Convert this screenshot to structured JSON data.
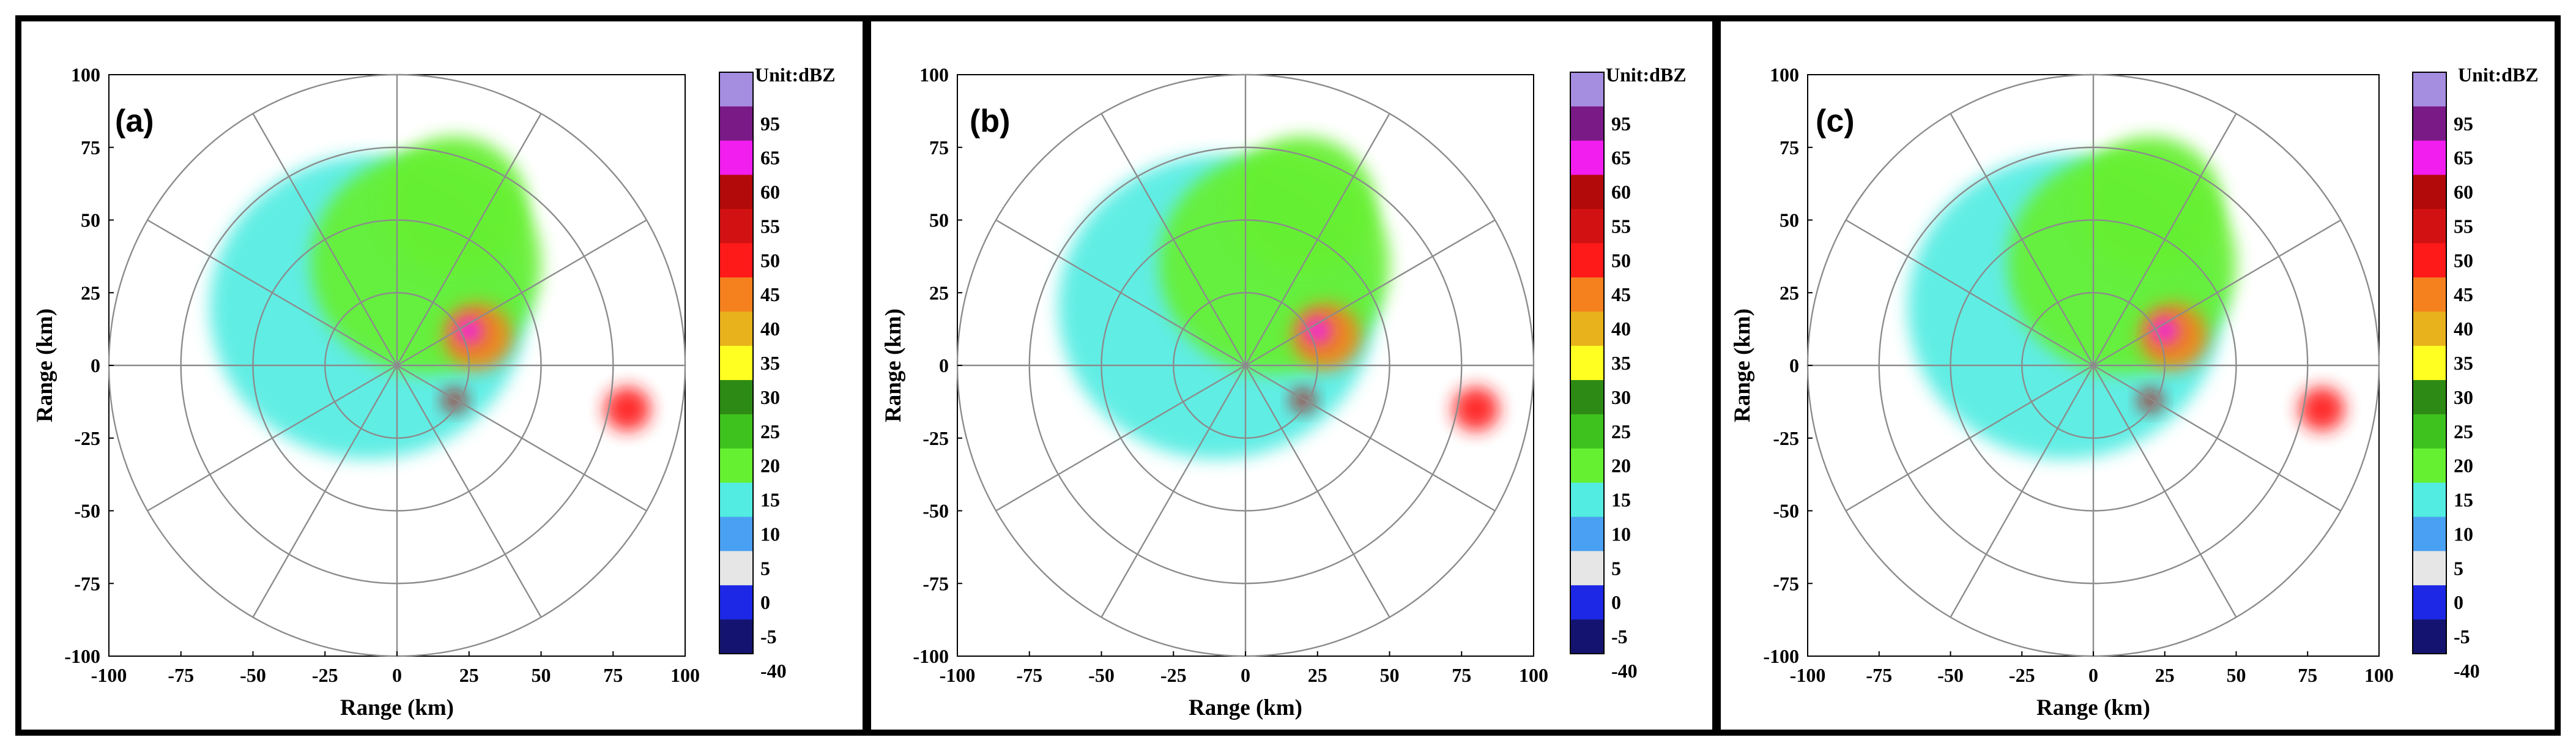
{
  "chart_data": [
    {
      "type": "heatmap",
      "panel_label": "(a)",
      "xlabel": "Range (km)",
      "ylabel": "Range (km)",
      "xlim": [
        -100,
        100
      ],
      "ylim": [
        -100,
        100
      ],
      "xticks": [
        "-100",
        "-75",
        "-50",
        "-25",
        "0",
        "25",
        "50",
        "75",
        "100"
      ],
      "yticks": [
        "100",
        "75",
        "50",
        "25",
        "0",
        "-25",
        "-50",
        "-75",
        "-100"
      ],
      "range_rings_km": [
        25,
        50,
        75,
        100
      ],
      "radial_spokes_deg": [
        0,
        30,
        60,
        90,
        120,
        150,
        180,
        210,
        240,
        270,
        300,
        330
      ],
      "colorbar_title": "Unit:dBZ",
      "colorbar_labels": [
        "95",
        "65",
        "60",
        "55",
        "50",
        "45",
        "40",
        "35",
        "30",
        "25",
        "20",
        "15",
        "10",
        "5",
        "0",
        "-5",
        "-40"
      ],
      "reflectivity_regions": [
        {
          "x": -10,
          "y": 20,
          "radius": 55,
          "dbz": 12
        },
        {
          "x": 10,
          "y": 35,
          "radius": 40,
          "dbz": 18
        },
        {
          "x": 20,
          "y": 55,
          "radius": 25,
          "dbz": 18
        },
        {
          "x": 28,
          "y": 10,
          "radius": 12,
          "dbz": 40
        },
        {
          "x": 25,
          "y": 12,
          "radius": 5,
          "dbz": 60
        },
        {
          "x": 80,
          "y": -15,
          "radius": 8,
          "dbz": 45
        },
        {
          "x": 20,
          "y": -12,
          "radius": 4,
          "dbz": 55
        }
      ]
    },
    {
      "type": "heatmap",
      "panel_label": "(b)",
      "xlabel": "Range (km)",
      "ylabel": "Range (km)",
      "xlim": [
        -100,
        100
      ],
      "ylim": [
        -100,
        100
      ],
      "xticks": [
        "-100",
        "-75",
        "-50",
        "-25",
        "0",
        "25",
        "50",
        "75",
        "100"
      ],
      "yticks": [
        "100",
        "75",
        "50",
        "25",
        "0",
        "-25",
        "-50",
        "-75",
        "-100"
      ],
      "range_rings_km": [
        25,
        50,
        75,
        100
      ],
      "radial_spokes_deg": [
        0,
        30,
        60,
        90,
        120,
        150,
        180,
        210,
        240,
        270,
        300,
        330
      ],
      "colorbar_title": "Unit:dBZ",
      "colorbar_labels": [
        "95",
        "65",
        "60",
        "55",
        "50",
        "45",
        "40",
        "35",
        "30",
        "25",
        "20",
        "15",
        "10",
        "5",
        "0",
        "-5",
        "-40"
      ],
      "reflectivity_regions": [
        {
          "x": -10,
          "y": 20,
          "radius": 55,
          "dbz": 12
        },
        {
          "x": 10,
          "y": 35,
          "radius": 40,
          "dbz": 18
        },
        {
          "x": 20,
          "y": 55,
          "radius": 25,
          "dbz": 18
        },
        {
          "x": 28,
          "y": 10,
          "radius": 12,
          "dbz": 40
        },
        {
          "x": 25,
          "y": 12,
          "radius": 5,
          "dbz": 60
        },
        {
          "x": 80,
          "y": -15,
          "radius": 8,
          "dbz": 45
        },
        {
          "x": 20,
          "y": -12,
          "radius": 4,
          "dbz": 55
        }
      ]
    },
    {
      "type": "heatmap",
      "panel_label": "(c)",
      "xlabel": "Range (km)",
      "ylabel": "Range (km)",
      "xlim": [
        -100,
        100
      ],
      "ylim": [
        -100,
        100
      ],
      "xticks": [
        "-100",
        "-75",
        "-50",
        "-25",
        "0",
        "25",
        "50",
        "75",
        "100"
      ],
      "yticks": [
        "100",
        "75",
        "50",
        "25",
        "0",
        "-25",
        "-50",
        "-75",
        "-100"
      ],
      "range_rings_km": [
        25,
        50,
        75,
        100
      ],
      "radial_spokes_deg": [
        0,
        30,
        60,
        90,
        120,
        150,
        180,
        210,
        240,
        270,
        300,
        330
      ],
      "colorbar_title": "Unit:dBZ",
      "colorbar_labels": [
        "95",
        "65",
        "60",
        "55",
        "50",
        "45",
        "40",
        "35",
        "30",
        "25",
        "20",
        "15",
        "10",
        "5",
        "0",
        "-5",
        "-40"
      ],
      "reflectivity_regions": [
        {
          "x": -10,
          "y": 20,
          "radius": 55,
          "dbz": 12
        },
        {
          "x": 10,
          "y": 35,
          "radius": 40,
          "dbz": 18
        },
        {
          "x": 20,
          "y": 55,
          "radius": 25,
          "dbz": 18
        },
        {
          "x": 28,
          "y": 10,
          "radius": 12,
          "dbz": 40
        },
        {
          "x": 25,
          "y": 12,
          "radius": 5,
          "dbz": 60
        },
        {
          "x": 80,
          "y": -15,
          "radius": 8,
          "dbz": 45
        },
        {
          "x": 20,
          "y": -12,
          "radius": 4,
          "dbz": 55
        }
      ]
    }
  ],
  "colors": {
    "colorbar": [
      "#a58de0",
      "#7a1a86",
      "#f21ef0",
      "#b20a0a",
      "#d21212",
      "#ff1a1a",
      "#f4811e",
      "#e8b21c",
      "#ffff22",
      "#2d8a14",
      "#3ec21e",
      "#66f032",
      "#52ece2",
      "#4aa0f2",
      "#e6e6e6",
      "#1c28e6",
      "#141470"
    ],
    "rings": "#8c8c8c",
    "frame": "#000000"
  }
}
